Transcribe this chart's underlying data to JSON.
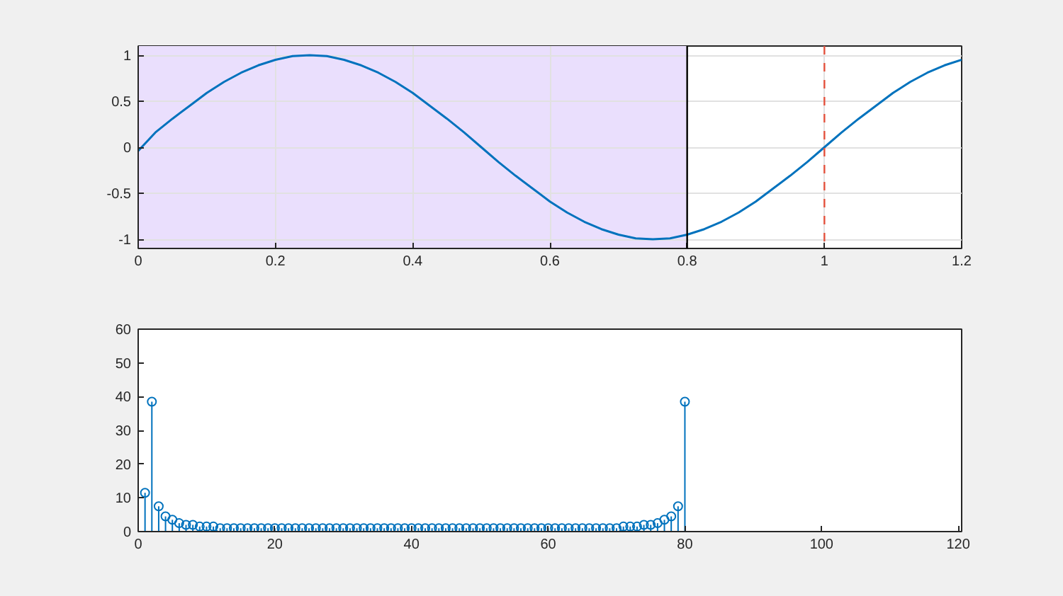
{
  "chart_data": [
    {
      "type": "line",
      "x": [
        0,
        0.025,
        0.05,
        0.075,
        0.1,
        0.125,
        0.15,
        0.175,
        0.2,
        0.225,
        0.25,
        0.275,
        0.3,
        0.325,
        0.35,
        0.375,
        0.4,
        0.425,
        0.45,
        0.475,
        0.5,
        0.525,
        0.55,
        0.575,
        0.6,
        0.625,
        0.65,
        0.675,
        0.7,
        0.725,
        0.75,
        0.775,
        0.8,
        0.825,
        0.85,
        0.875,
        0.9,
        0.925,
        0.95,
        0.975,
        1,
        1.025,
        1.05,
        1.075,
        1.1,
        1.125,
        1.15,
        1.175,
        1.2
      ],
      "series": [
        {
          "color": "#0072bd",
          "values": [
            -0.04,
            0.16,
            0.31,
            0.45,
            0.59,
            0.71,
            0.81,
            0.89,
            0.95,
            0.99,
            1,
            0.99,
            0.95,
            0.89,
            0.81,
            0.71,
            0.59,
            0.45,
            0.31,
            0.16,
            0,
            -0.16,
            -0.31,
            -0.45,
            -0.59,
            -0.71,
            -0.81,
            -0.89,
            -0.95,
            -0.99,
            -1,
            -0.99,
            -0.95,
            -0.89,
            -0.81,
            -0.71,
            -0.59,
            -0.45,
            -0.31,
            -0.16,
            0,
            0.16,
            0.31,
            0.45,
            0.59,
            0.71,
            0.81,
            0.89,
            0.95
          ]
        }
      ],
      "xlim": [
        0,
        1.2
      ],
      "xticks": [
        0,
        0.2,
        0.4,
        0.6,
        0.8,
        1,
        1.2
      ],
      "ylim": [
        -1.1,
        1.1
      ],
      "yticks": [
        -1,
        -0.5,
        0,
        0.5,
        1
      ],
      "grid": true,
      "bands": [
        {
          "axis": "x",
          "from": 0,
          "to": 0.8,
          "color": "#eadffd"
        }
      ],
      "ref_lines": [
        {
          "axis": "x",
          "value": 0.8,
          "color": "#000000",
          "line_style": "solid"
        },
        {
          "axis": "x",
          "value": 1,
          "color": "#e5533f",
          "line_style": "dashed"
        }
      ]
    },
    {
      "type": "lollipop",
      "x": [
        1,
        2,
        3,
        4,
        5,
        6,
        7,
        8,
        9,
        10,
        11,
        12,
        13,
        14,
        15,
        16,
        17,
        18,
        19,
        20,
        21,
        22,
        23,
        24,
        25,
        26,
        27,
        28,
        29,
        30,
        31,
        32,
        33,
        34,
        35,
        36,
        37,
        38,
        39,
        40,
        41,
        42,
        43,
        44,
        45,
        46,
        47,
        48,
        49,
        50,
        51,
        52,
        53,
        54,
        55,
        56,
        57,
        58,
        59,
        60,
        61,
        62,
        63,
        64,
        65,
        66,
        67,
        68,
        69,
        70,
        71,
        72,
        73,
        74,
        75,
        76,
        77,
        78,
        79,
        80
      ],
      "series": [
        {
          "color": "#0072bd",
          "values": [
            11.5,
            38.5,
            7.5,
            4.5,
            3.5,
            2.5,
            2,
            2,
            1.5,
            1.5,
            1.5,
            1,
            1,
            1,
            1,
            1,
            1,
            1,
            1,
            1,
            1,
            1,
            1,
            1,
            1,
            1,
            1,
            1,
            1,
            1,
            1,
            1,
            1,
            1,
            1,
            1,
            1,
            1,
            1,
            1,
            1,
            1,
            1,
            1,
            1,
            1,
            1,
            1,
            1,
            1,
            1,
            1,
            1,
            1,
            1,
            1,
            1,
            1,
            1,
            1,
            1,
            1,
            1,
            1,
            1,
            1,
            1,
            1,
            1,
            1,
            1.5,
            1.5,
            1.5,
            2,
            2,
            2.5,
            3.5,
            4.5,
            7.5,
            38.5
          ]
        }
      ],
      "marker": "circle",
      "xlim": [
        0,
        120.5
      ],
      "xticks": [
        0,
        20,
        40,
        60,
        80,
        100,
        120
      ],
      "ylim": [
        0,
        60
      ],
      "yticks": [
        0,
        10,
        20,
        30,
        40,
        50,
        60
      ]
    }
  ]
}
